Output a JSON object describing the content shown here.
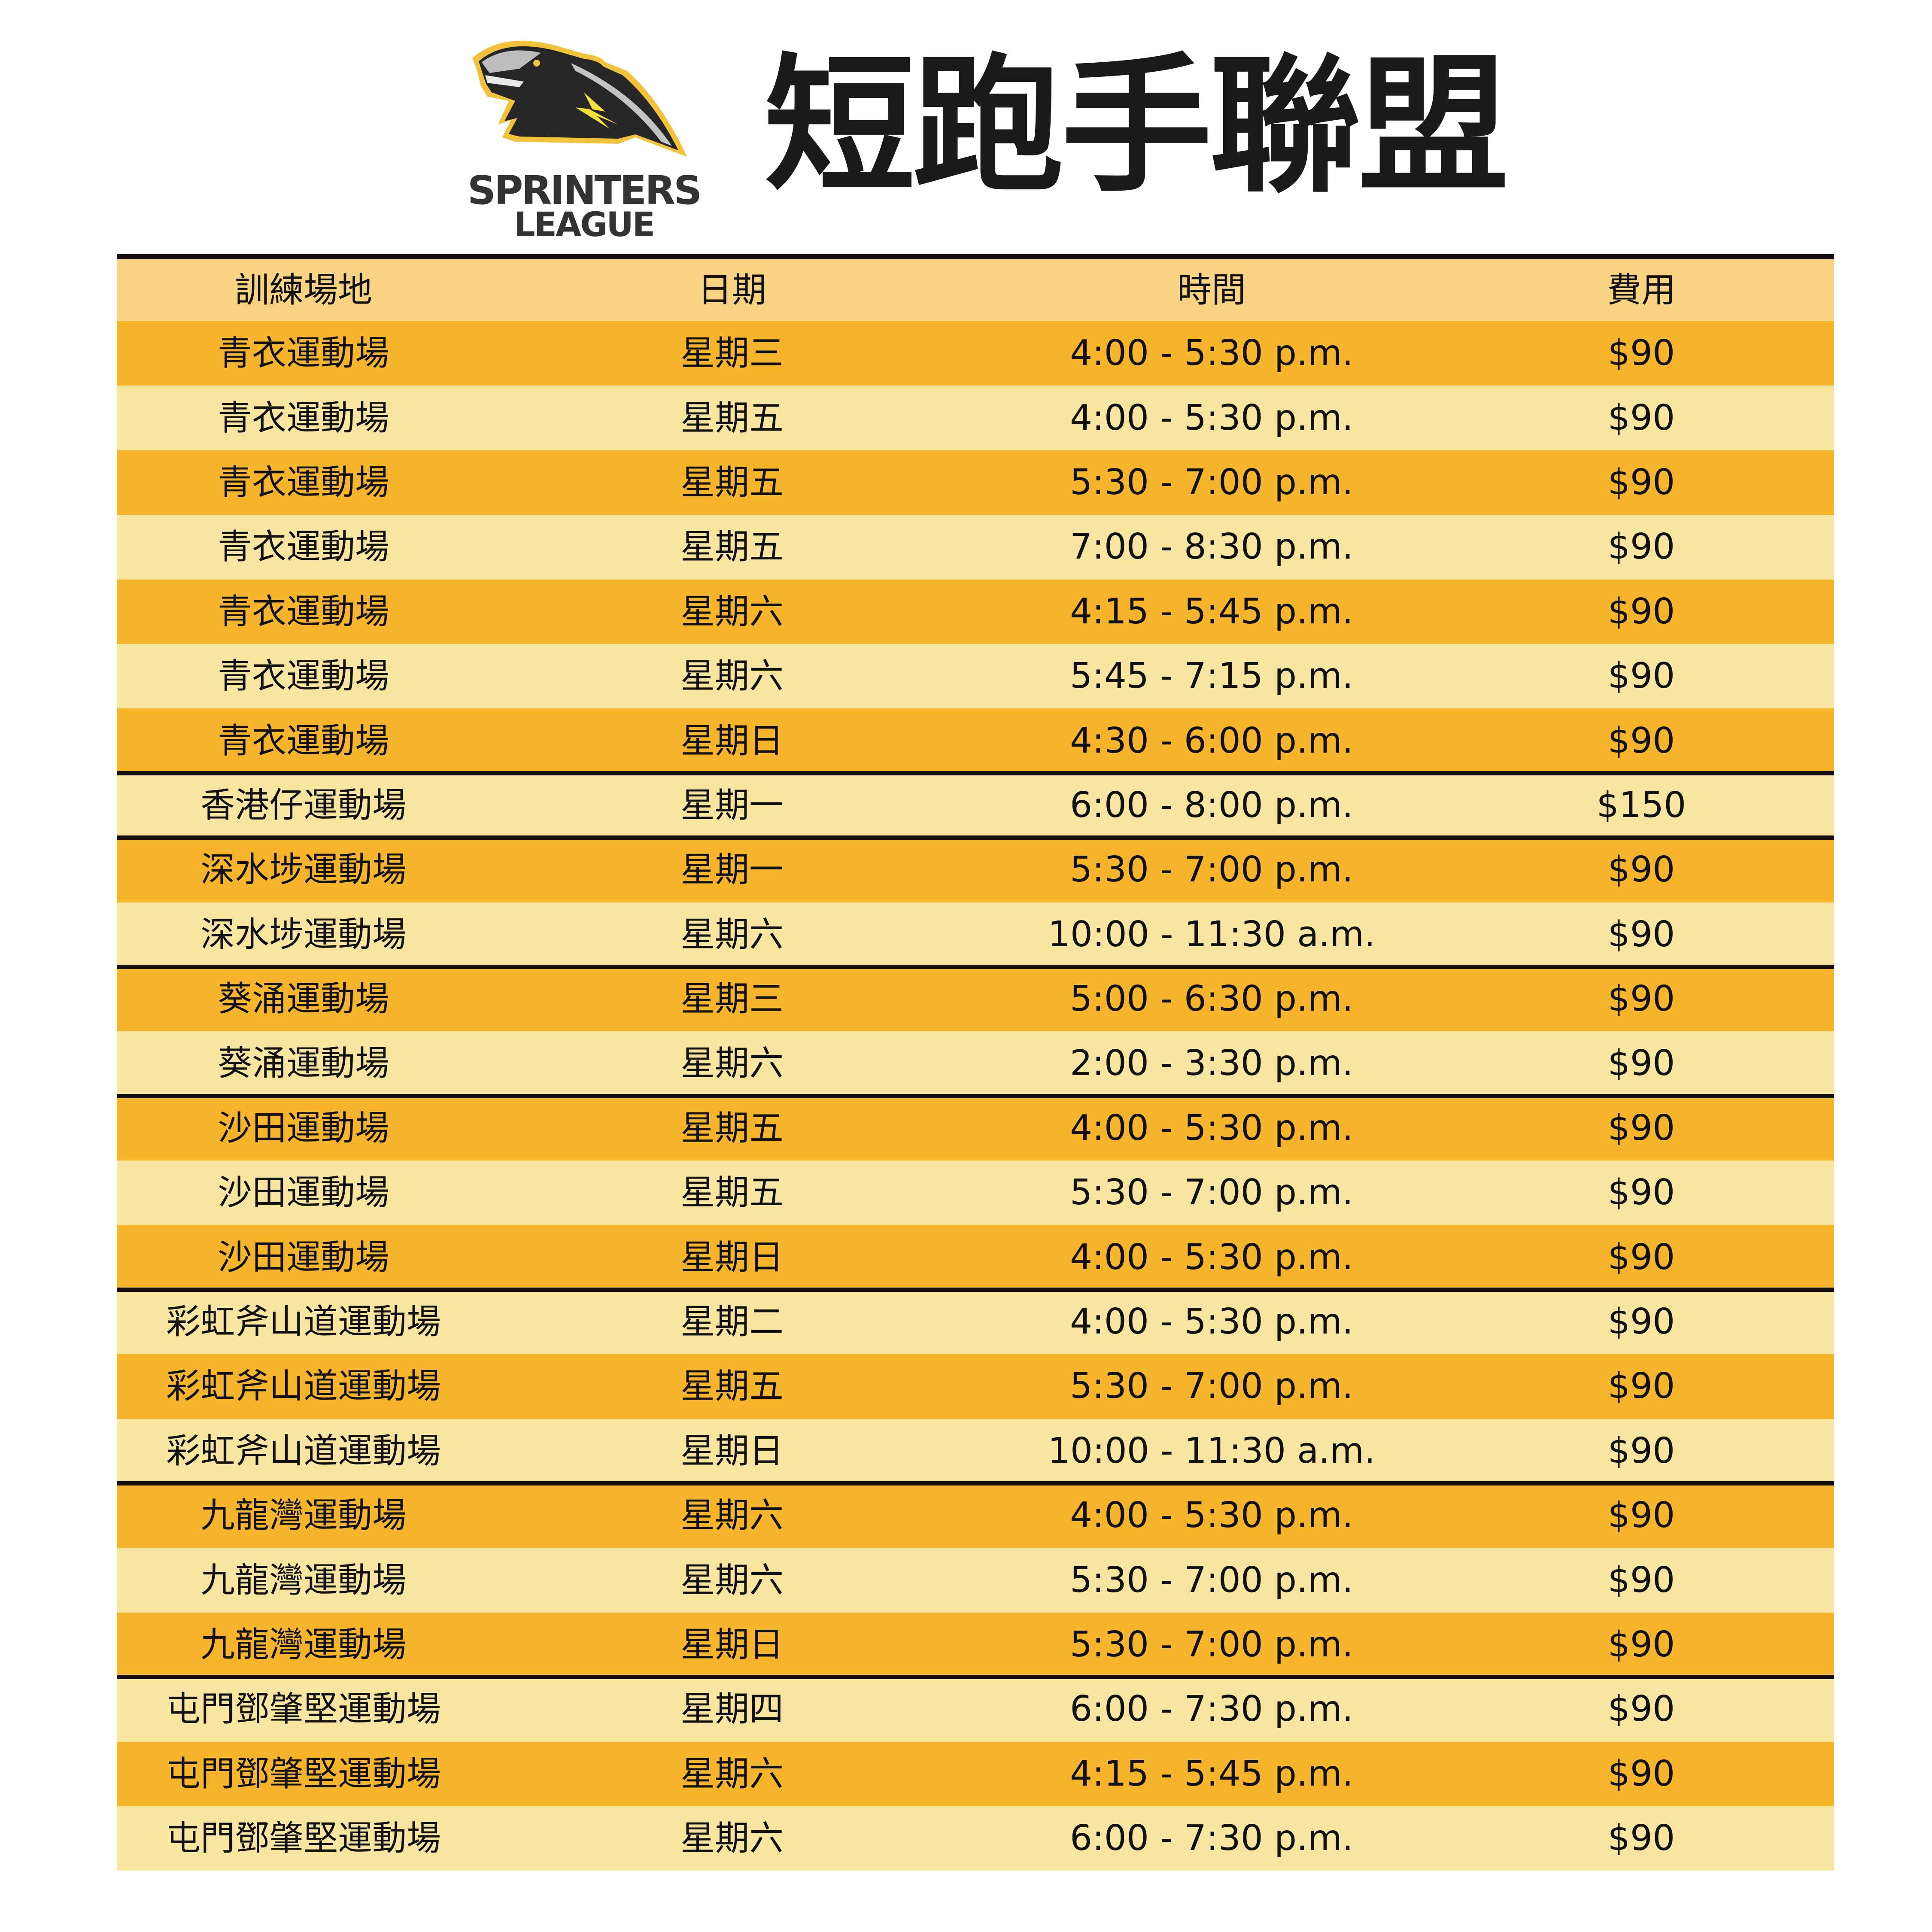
{
  "logo": {
    "line1": "SPRINTERS",
    "line2": "LEAGUE"
  },
  "title": "短跑手聯盟",
  "colors": {
    "header": "#F8D482",
    "row_dark": "#F7B52C",
    "row_light": "#F8E6A0",
    "separator": "#15100d",
    "logo_gold": "#F2C23A"
  },
  "table": {
    "headers": [
      "訓練場地",
      "日期",
      "時間",
      "費用"
    ],
    "rows": [
      [
        "青衣運動場",
        "星期三",
        "4:00 - 5:30 p.m.",
        "$90"
      ],
      [
        "青衣運動場",
        "星期五",
        "4:00 - 5:30 p.m.",
        "$90"
      ],
      [
        "青衣運動場",
        "星期五",
        "5:30 - 7:00 p.m.",
        "$90"
      ],
      [
        "青衣運動場",
        "星期五",
        "7:00 - 8:30 p.m.",
        "$90"
      ],
      [
        "青衣運動場",
        "星期六",
        "4:15 - 5:45 p.m.",
        "$90"
      ],
      [
        "青衣運動場",
        "星期六",
        "5:45 - 7:15 p.m.",
        "$90"
      ],
      [
        "青衣運動場",
        "星期日",
        "4:30 - 6:00 p.m.",
        "$90"
      ],
      [
        "香港仔運動場",
        "星期一",
        "6:00 - 8:00 p.m.",
        "$150"
      ],
      [
        "深水埗運動場",
        "星期一",
        "5:30 - 7:00 p.m.",
        "$90"
      ],
      [
        "深水埗運動場",
        "星期六",
        "10:00 - 11:30 a.m.",
        "$90"
      ],
      [
        "葵涌運動場",
        "星期三",
        "5:00 - 6:30 p.m.",
        "$90"
      ],
      [
        "葵涌運動場",
        "星期六",
        "2:00 - 3:30 p.m.",
        "$90"
      ],
      [
        "沙田運動場",
        "星期五",
        "4:00 - 5:30 p.m.",
        "$90"
      ],
      [
        "沙田運動場",
        "星期五",
        "5:30 - 7:00 p.m.",
        "$90"
      ],
      [
        "沙田運動場",
        "星期日",
        "4:00 - 5:30 p.m.",
        "$90"
      ],
      [
        "彩虹斧山道運動場",
        "星期二",
        "4:00 - 5:30 p.m.",
        "$90"
      ],
      [
        "彩虹斧山道運動場",
        "星期五",
        "5:30 - 7:00 p.m.",
        "$90"
      ],
      [
        "彩虹斧山道運動場",
        "星期日",
        "10:00 - 11:30 a.m.",
        "$90"
      ],
      [
        "九龍灣運動場",
        "星期六",
        "4:00 - 5:30 p.m.",
        "$90"
      ],
      [
        "九龍灣運動場",
        "星期六",
        "5:30 - 7:00 p.m.",
        "$90"
      ],
      [
        "九龍灣運動場",
        "星期日",
        "5:30 - 7:00 p.m.",
        "$90"
      ],
      [
        "屯門鄧肇堅運動場",
        "星期四",
        "6:00 - 7:30 p.m.",
        "$90"
      ],
      [
        "屯門鄧肇堅運動場",
        "星期六",
        "4:15 - 5:45 p.m.",
        "$90"
      ],
      [
        "屯門鄧肇堅運動場",
        "星期六",
        "6:00 - 7:30 p.m.",
        "$90"
      ]
    ]
  }
}
